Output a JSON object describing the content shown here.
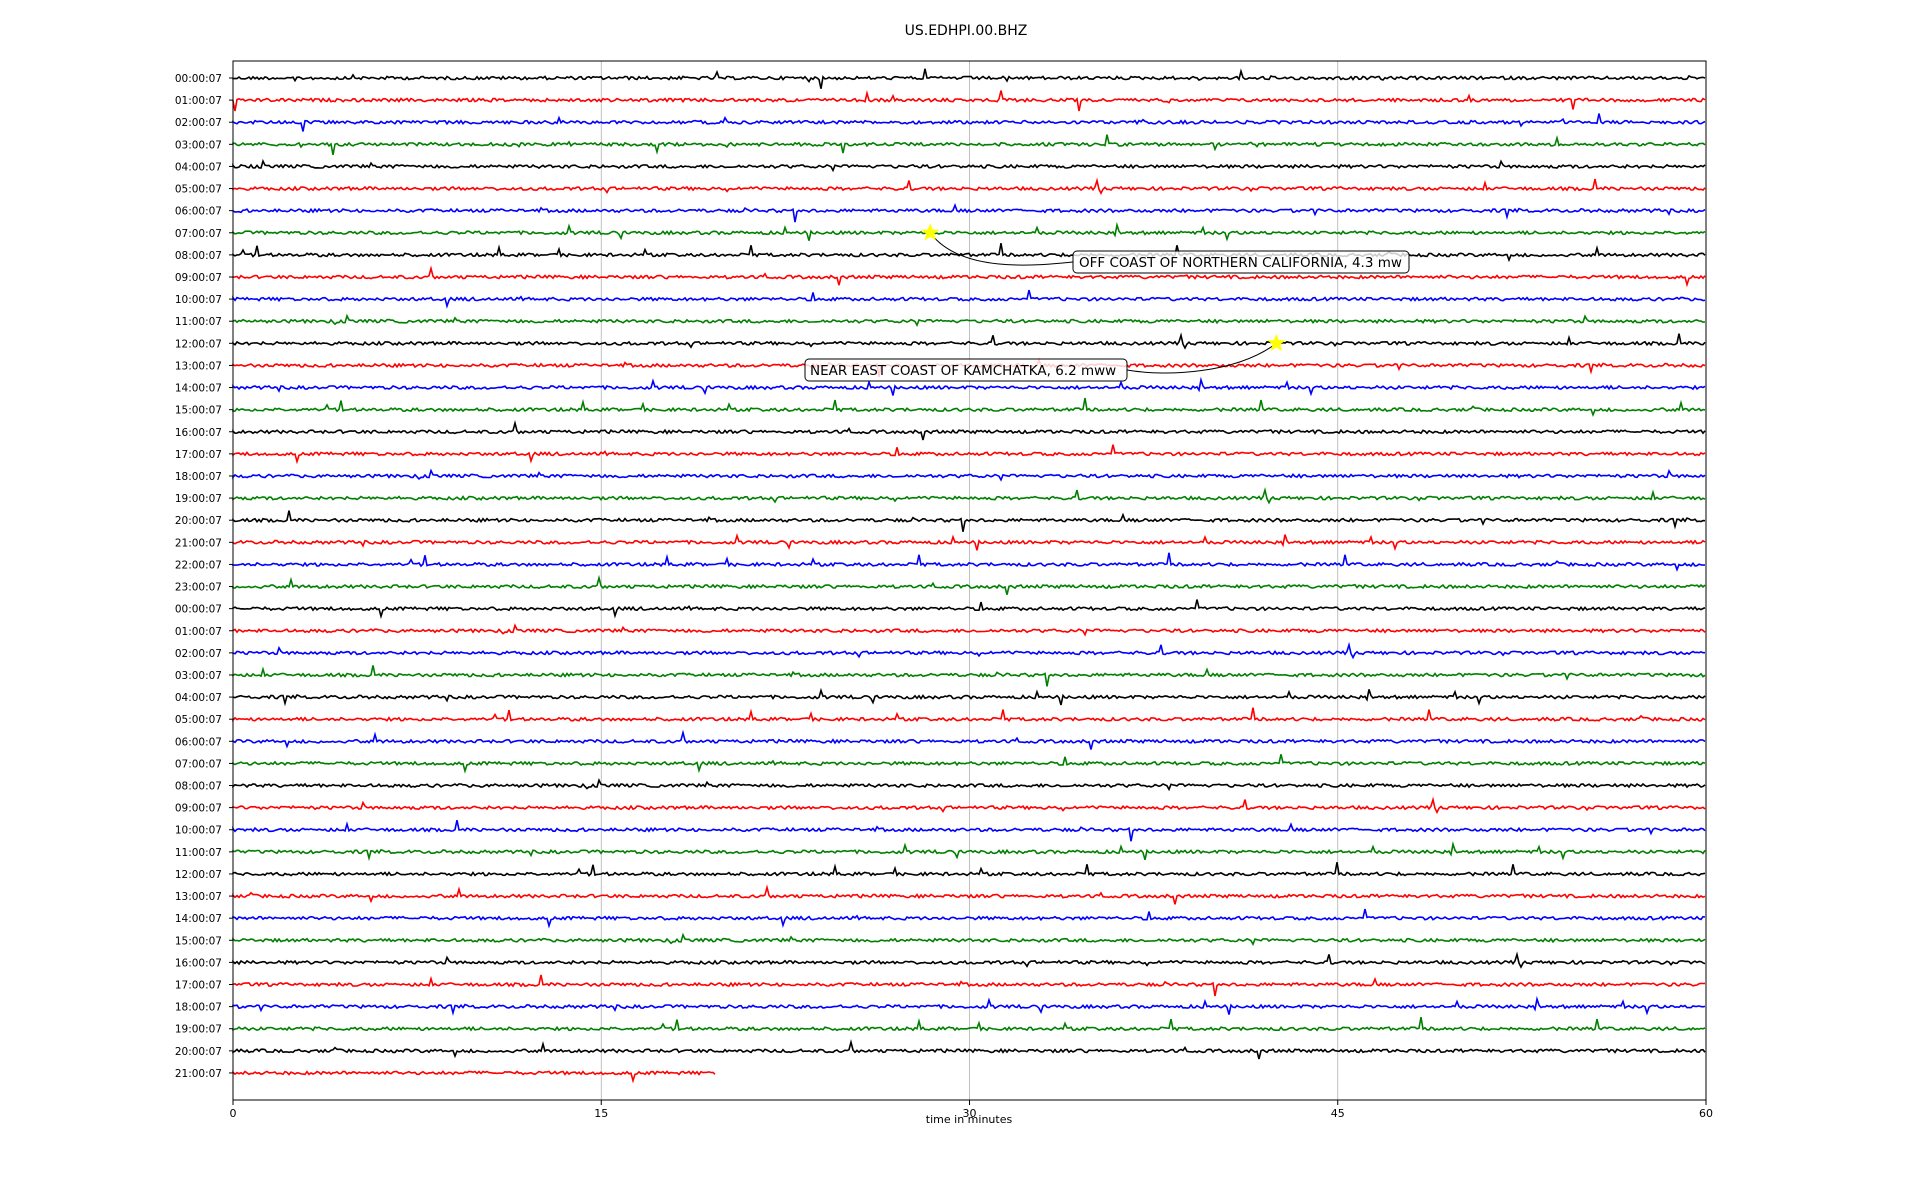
{
  "chart_data": {
    "type": "line",
    "title": "US.EDHPI.00.BHZ",
    "xlabel": "time in minutes",
    "ylabel": "",
    "xlim": [
      0,
      60
    ],
    "xticks": [
      "0",
      "15",
      "30",
      "45",
      "60"
    ],
    "grid": "vertical",
    "color_cycle": [
      "#000000",
      "#ff0000",
      "#0000ff",
      "#008000"
    ],
    "row_labels": [
      "00:00:07",
      "01:00:07",
      "02:00:07",
      "03:00:07",
      "04:00:07",
      "05:00:07",
      "06:00:07",
      "07:00:07",
      "08:00:07",
      "09:00:07",
      "10:00:07",
      "11:00:07",
      "12:00:07",
      "13:00:07",
      "14:00:07",
      "15:00:07",
      "16:00:07",
      "17:00:07",
      "18:00:07",
      "19:00:07",
      "20:00:07",
      "21:00:07",
      "22:00:07",
      "23:00:07",
      "00:00:07",
      "01:00:07",
      "02:00:07",
      "03:00:07",
      "04:00:07",
      "05:00:07",
      "06:00:07",
      "07:00:07",
      "08:00:07",
      "09:00:07",
      "10:00:07",
      "11:00:07",
      "12:00:07",
      "13:00:07",
      "14:00:07",
      "15:00:07",
      "16:00:07",
      "17:00:07",
      "18:00:07",
      "19:00:07",
      "20:00:07",
      "21:00:07"
    ],
    "last_row_end_minutes": 19.7,
    "events": [
      {
        "row": 7,
        "minute": 28.4,
        "label": "OFF COAST OF NORTHERN CALIFORNIA, 4.3 mw"
      },
      {
        "row": 12,
        "minute": 42.5,
        "label": "NEAR EAST COAST OF KAMCHATKA, 6.2 mww"
      }
    ]
  }
}
